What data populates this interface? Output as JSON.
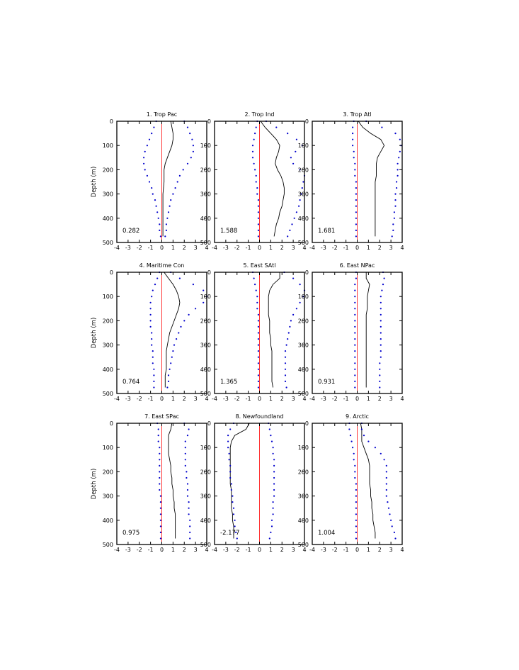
{
  "colors": {
    "mean": "#000000",
    "bounds": "#0000cc",
    "zero": "#ff2020",
    "axis": "#000000"
  },
  "chart_data": {
    "type": "line",
    "x_ticks": [
      -4,
      -3,
      -2,
      -1,
      0,
      1,
      2,
      3,
      4
    ],
    "xlim": [
      -4,
      4
    ],
    "y_ticks": [
      0,
      100,
      200,
      300,
      400,
      500
    ],
    "ylim": [
      0,
      500
    ],
    "y_inverted": true,
    "ylabel": "Depth (m)",
    "reference_line_x": 0,
    "depth": [
      0,
      25,
      50,
      75,
      100,
      125,
      150,
      175,
      200,
      225,
      250,
      275,
      300,
      325,
      350,
      375,
      400,
      425,
      450,
      475
    ],
    "panels": [
      {
        "title": "1. Trop Pac",
        "value": "0.282",
        "mean": [
          0.8,
          0.9,
          1.0,
          1.0,
          0.9,
          0.7,
          0.5,
          0.3,
          0.2,
          0.2,
          0.2,
          0.15,
          0.1,
          0.1,
          0.1,
          0.1,
          0.1,
          0.1,
          0.1,
          0.1
        ],
        "lower": [
          -0.5,
          -0.7,
          -0.9,
          -1.1,
          -1.3,
          -1.5,
          -1.6,
          -1.6,
          -1.5,
          -1.3,
          -1.1,
          -0.9,
          -0.8,
          -0.6,
          -0.5,
          -0.4,
          -0.3,
          -0.2,
          -0.2,
          -0.1
        ],
        "upper": [
          2.0,
          2.3,
          2.5,
          2.7,
          2.8,
          2.8,
          2.6,
          2.3,
          1.9,
          1.6,
          1.4,
          1.2,
          1.0,
          0.8,
          0.7,
          0.6,
          0.5,
          0.4,
          0.4,
          0.3
        ]
      },
      {
        "title": "2. Trop Ind",
        "value": "1.588",
        "mean": [
          0.1,
          0.5,
          1.0,
          1.5,
          1.8,
          1.7,
          1.5,
          1.4,
          1.6,
          1.9,
          2.1,
          2.2,
          2.2,
          2.1,
          2.0,
          1.8,
          1.7,
          1.5,
          1.4,
          1.3
        ],
        "lower": [
          -0.2,
          -0.3,
          -0.4,
          -0.5,
          -0.6,
          -0.6,
          -0.6,
          -0.5,
          -0.4,
          -0.3,
          -0.3,
          -0.2,
          -0.2,
          -0.1,
          -0.1,
          -0.1,
          -0.1,
          -0.1,
          -0.1,
          -0.1
        ],
        "upper": [
          0.6,
          1.5,
          2.5,
          3.3,
          3.8,
          3.2,
          2.8,
          3.0,
          3.6,
          4.0,
          3.9,
          3.8,
          3.7,
          3.6,
          3.5,
          3.3,
          3.1,
          2.9,
          2.7,
          2.5
        ]
      },
      {
        "title": "3. Trop Atl",
        "value": "1.681",
        "mean": [
          0.1,
          0.5,
          1.2,
          2.1,
          2.4,
          2.1,
          1.8,
          1.7,
          1.7,
          1.7,
          1.6,
          1.6,
          1.6,
          1.6,
          1.6,
          1.6,
          1.6,
          1.6,
          1.6,
          1.6
        ],
        "lower": [
          -0.3,
          -0.4,
          -0.4,
          -0.4,
          -0.4,
          -0.3,
          -0.3,
          -0.2,
          -0.2,
          -0.2,
          -0.1,
          -0.1,
          -0.1,
          -0.1,
          -0.1,
          -0.1,
          -0.1,
          -0.1,
          -0.1,
          -0.1
        ],
        "upper": [
          0.8,
          2.2,
          3.4,
          3.8,
          3.9,
          3.8,
          3.7,
          3.6,
          3.6,
          3.6,
          3.5,
          3.5,
          3.4,
          3.4,
          3.4,
          3.3,
          3.3,
          3.2,
          3.2,
          3.1
        ]
      },
      {
        "title": "4. Maritime Con",
        "value": "0.764",
        "mean": [
          0.2,
          0.6,
          1.0,
          1.3,
          1.5,
          1.6,
          1.5,
          1.3,
          1.1,
          0.9,
          0.7,
          0.6,
          0.5,
          0.4,
          0.4,
          0.4,
          0.4,
          0.3,
          0.3,
          0.3
        ],
        "lower": [
          -0.2,
          -0.4,
          -0.6,
          -0.8,
          -0.9,
          -1.0,
          -1.0,
          -1.0,
          -1.0,
          -1.0,
          -0.9,
          -0.9,
          -0.9,
          -0.8,
          -0.8,
          -0.8,
          -0.7,
          -0.7,
          -0.7,
          -0.7
        ],
        "upper": [
          0.8,
          1.6,
          2.8,
          3.7,
          4.0,
          3.7,
          3.0,
          2.4,
          2.0,
          1.7,
          1.5,
          1.3,
          1.1,
          1.0,
          0.9,
          0.8,
          0.7,
          0.6,
          0.6,
          0.5
        ]
      },
      {
        "title": "5. East SAtl",
        "value": "1.365",
        "mean": [
          1.8,
          1.8,
          1.2,
          0.9,
          0.8,
          0.8,
          0.8,
          0.8,
          0.9,
          0.9,
          0.9,
          1.0,
          1.0,
          1.1,
          1.1,
          1.1,
          1.1,
          1.1,
          1.1,
          1.2
        ],
        "lower": [
          -0.6,
          -0.5,
          -0.4,
          -0.3,
          -0.2,
          -0.2,
          -0.2,
          -0.1,
          -0.1,
          -0.1,
          -0.1,
          -0.1,
          -0.1,
          -0.1,
          -0.1,
          -0.1,
          -0.1,
          -0.1,
          -0.1,
          -0.1
        ],
        "upper": [
          2.2,
          3.0,
          3.6,
          4.0,
          3.9,
          3.6,
          3.3,
          3.0,
          2.8,
          2.7,
          2.6,
          2.5,
          2.4,
          2.3,
          2.3,
          2.3,
          2.3,
          2.3,
          2.3,
          2.4
        ]
      },
      {
        "title": "6. East NPac",
        "value": "0.931",
        "mean": [
          0.8,
          0.8,
          1.1,
          1.0,
          0.9,
          0.9,
          0.9,
          0.8,
          0.8,
          0.8,
          0.8,
          0.8,
          0.8,
          0.8,
          0.8,
          0.8,
          0.8,
          0.8,
          0.8,
          0.8
        ],
        "lower": [
          -0.1,
          -0.1,
          -0.2,
          -0.2,
          -0.2,
          -0.2,
          -0.2,
          -0.2,
          -0.2,
          -0.2,
          -0.2,
          -0.2,
          -0.2,
          -0.2,
          -0.2,
          -0.2,
          -0.2,
          -0.2,
          -0.2,
          -0.2
        ],
        "upper": [
          2.3,
          2.4,
          2.3,
          2.2,
          2.1,
          2.1,
          2.1,
          2.1,
          2.1,
          2.1,
          2.1,
          2.1,
          2.1,
          2.1,
          2.1,
          2.0,
          2.0,
          2.0,
          2.0,
          2.0
        ]
      },
      {
        "title": "7. East SPac",
        "value": "0.975",
        "mean": [
          0.9,
          0.8,
          0.6,
          0.6,
          0.6,
          0.6,
          0.7,
          0.8,
          0.8,
          0.9,
          0.9,
          1.0,
          1.0,
          1.1,
          1.1,
          1.2,
          1.2,
          1.2,
          1.2,
          1.2
        ],
        "lower": [
          -0.4,
          -0.3,
          -0.3,
          -0.3,
          -0.2,
          -0.2,
          -0.2,
          -0.2,
          -0.2,
          -0.2,
          -0.2,
          -0.2,
          -0.1,
          -0.1,
          -0.1,
          -0.1,
          -0.1,
          -0.1,
          -0.1,
          -0.1
        ],
        "upper": [
          2.0,
          2.4,
          2.3,
          2.1,
          2.1,
          2.1,
          2.1,
          2.1,
          2.2,
          2.2,
          2.3,
          2.3,
          2.3,
          2.4,
          2.4,
          2.4,
          2.5,
          2.5,
          2.5,
          2.5
        ]
      },
      {
        "title": "8. Newfoundland",
        "value": "-2.177",
        "mean": [
          -0.9,
          -1.2,
          -2.2,
          -2.5,
          -2.6,
          -2.6,
          -2.6,
          -2.6,
          -2.6,
          -2.6,
          -2.6,
          -2.5,
          -2.5,
          -2.5,
          -2.5,
          -2.4,
          -2.4,
          -2.3,
          -2.3,
          -2.3
        ],
        "lower": [
          -2.3,
          -2.6,
          -2.8,
          -2.8,
          -2.8,
          -2.7,
          -2.7,
          -2.6,
          -2.6,
          -2.6,
          -2.5,
          -2.5,
          -2.4,
          -2.4,
          -2.3,
          -2.3,
          -2.2,
          -2.2,
          -2.1,
          -2.0
        ],
        "upper": [
          0.8,
          0.9,
          1.0,
          1.1,
          1.2,
          1.2,
          1.3,
          1.3,
          1.3,
          1.3,
          1.3,
          1.3,
          1.3,
          1.2,
          1.2,
          1.2,
          1.1,
          1.1,
          1.0,
          0.9
        ]
      },
      {
        "title": "9. Arctic",
        "value": "1.004",
        "mean": [
          0.3,
          0.4,
          0.4,
          0.4,
          0.6,
          0.8,
          1.0,
          1.1,
          1.1,
          1.1,
          1.1,
          1.2,
          1.2,
          1.3,
          1.3,
          1.4,
          1.4,
          1.5,
          1.6,
          1.6
        ],
        "lower": [
          -0.7,
          -0.7,
          -0.6,
          -0.5,
          -0.4,
          -0.3,
          -0.3,
          -0.2,
          -0.2,
          -0.2,
          -0.1,
          -0.1,
          -0.1,
          -0.1,
          -0.1,
          -0.1,
          -0.1,
          -0.1,
          -0.1,
          -0.1
        ],
        "upper": [
          0.4,
          0.4,
          0.6,
          1.0,
          1.6,
          2.1,
          2.4,
          2.6,
          2.6,
          2.6,
          2.6,
          2.6,
          2.6,
          2.7,
          2.8,
          2.9,
          3.0,
          3.1,
          3.3,
          3.4
        ]
      }
    ]
  }
}
